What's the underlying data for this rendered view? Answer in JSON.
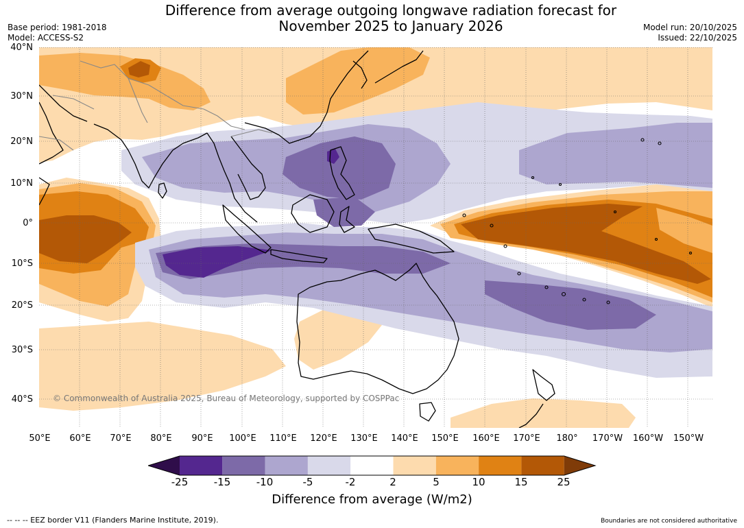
{
  "header": {
    "title_line1": "Difference from average outgoing longwave radiation forecast for",
    "title_line2": "November 2025 to January 2026",
    "base_period": "Base period: 1981-2018",
    "model": "Model: ACCESS-S2",
    "model_run": "Model run: 20/10/2025",
    "issued": "Issued: 22/10/2025"
  },
  "map": {
    "lat_labels": [
      "40°N",
      "30°N",
      "20°N",
      "10°N",
      "0°",
      "10°S",
      "20°S",
      "30°S",
      "40°S"
    ],
    "lon_labels": [
      "50°E",
      "60°E",
      "70°E",
      "80°E",
      "90°E",
      "100°E",
      "110°E",
      "120°E",
      "130°E",
      "140°E",
      "150°E",
      "160°E",
      "170°E",
      "180°",
      "170°W",
      "160°W",
      "150°W"
    ],
    "watermark": "© Commonwealth of Australia 2025, Bureau of Meteorology, supported by COSPPac",
    "extent": {
      "lon_min": 50,
      "lon_max": 216,
      "lat_min": -47,
      "lat_max": 40
    }
  },
  "legend": {
    "ticks": [
      "-25",
      "-15",
      "-10",
      "-5",
      "-2",
      "2",
      "5",
      "10",
      "15",
      "25"
    ],
    "colors": [
      "#2f0d4a",
      "#54278f",
      "#7d6aa8",
      "#ada6cf",
      "#d9d9ea",
      "#ffffff",
      "#fddbae",
      "#f8b35c",
      "#e08214",
      "#b35806",
      "#7f3b08"
    ],
    "label": "Difference from average (W/m2)"
  },
  "footer": {
    "eez_note": "--  --  -- EEZ border V11 (Flanders Marine Institute, 2019).",
    "boundaries_note": "Boundaries are not considered authoritative"
  }
}
